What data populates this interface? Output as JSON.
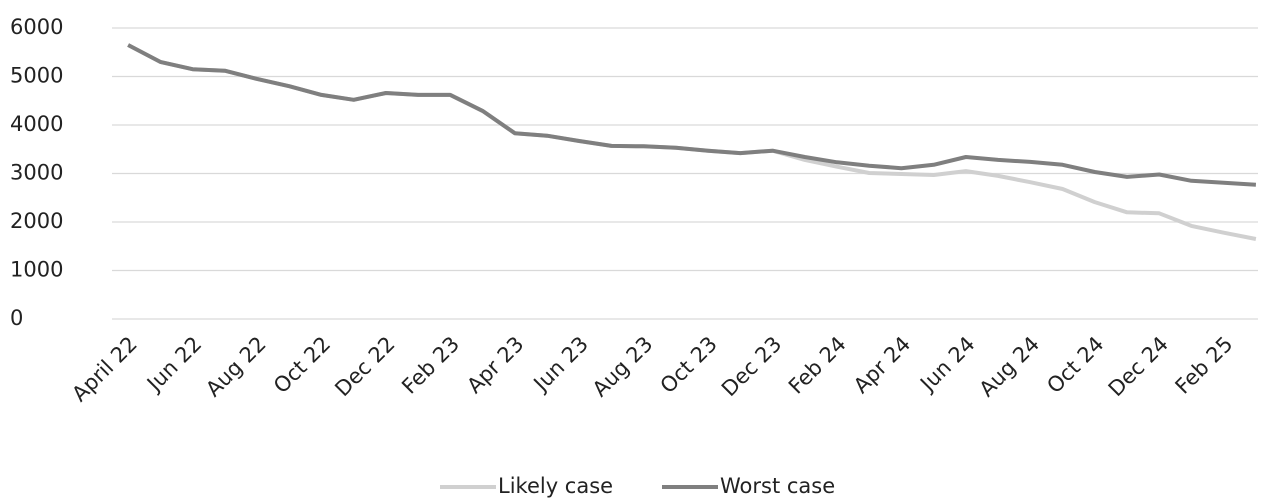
{
  "chart_data": {
    "type": "line",
    "categories": [
      "April 22",
      null,
      "Jun 22",
      null,
      "Aug 22",
      null,
      "Oct 22",
      null,
      "Dec 22",
      null,
      "Feb 23",
      null,
      "Apr 23",
      null,
      "Jun 23",
      null,
      "Aug 23",
      null,
      "Oct 23",
      null,
      "Dec 23",
      null,
      "Feb 24",
      null,
      "Apr 24",
      null,
      "Jun 24",
      null,
      "Aug 24",
      null,
      "Oct 24",
      null,
      "Dec 24",
      null,
      "Feb 25",
      null
    ],
    "series": [
      {
        "name": "Likely case",
        "color": "#d0d0d0",
        "values": [
          5650,
          5300,
          5150,
          5120,
          4950,
          4800,
          4620,
          4520,
          4660,
          4620,
          4620,
          4290,
          3830,
          3780,
          3670,
          3570,
          3560,
          3530,
          3470,
          3420,
          3470,
          3280,
          3140,
          3010,
          2990,
          2970,
          3050,
          2950,
          2820,
          2680,
          2410,
          2200,
          2180,
          1920,
          1780,
          1650
        ]
      },
      {
        "name": "Worst case",
        "color": "#7f7f7f",
        "values": [
          5650,
          5300,
          5150,
          5120,
          4950,
          4800,
          4620,
          4520,
          4660,
          4620,
          4620,
          4290,
          3830,
          3780,
          3670,
          3570,
          3560,
          3530,
          3470,
          3420,
          3470,
          3340,
          3230,
          3160,
          3110,
          3180,
          3340,
          3280,
          3240,
          3180,
          3030,
          2930,
          2980,
          2850,
          2810,
          2770
        ]
      }
    ],
    "ylim": [
      0,
      6000
    ],
    "yticks": [
      0,
      1000,
      2000,
      3000,
      4000,
      5000,
      6000
    ],
    "grid": true,
    "legend": "bottom"
  }
}
